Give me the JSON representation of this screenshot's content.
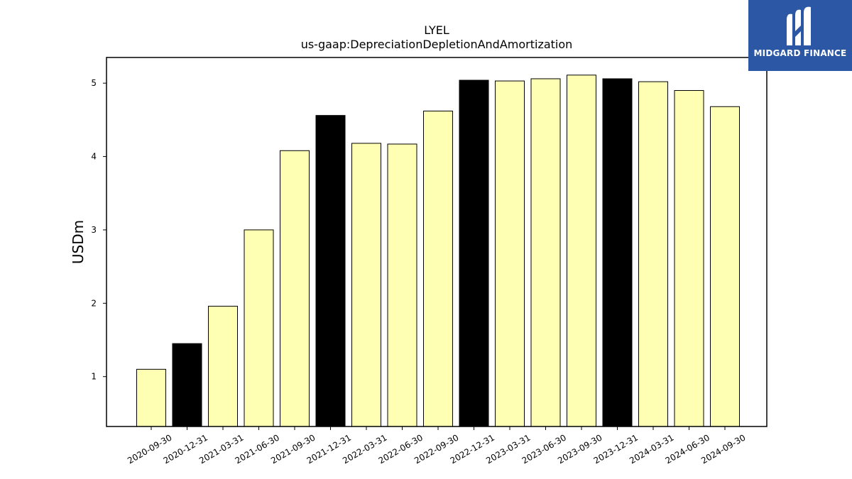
{
  "logo": {
    "brand": "MIDGARD FINANCE",
    "icon": "midgard-m-logo-icon",
    "bg_color": "#2b57a5"
  },
  "chart_data": {
    "type": "bar",
    "title": "LYEL",
    "subtitle": "us-gaap:DepreciationDepletionAndAmortization",
    "xlabel": "",
    "ylabel": "USDm",
    "ylim": [
      0.32,
      5.35
    ],
    "yticks": [
      1,
      2,
      3,
      4,
      5
    ],
    "grid": false,
    "categories": [
      "2020-09-30",
      "2020-12-31",
      "2021-03-31",
      "2021-06-30",
      "2021-09-30",
      "2021-12-31",
      "2022-03-31",
      "2022-06-30",
      "2022-09-30",
      "2022-12-31",
      "2023-03-31",
      "2023-06-30",
      "2023-09-30",
      "2023-12-31",
      "2024-03-31",
      "2024-06-30",
      "2024-09-30"
    ],
    "values": [
      1.1,
      1.45,
      1.96,
      3.0,
      4.08,
      4.56,
      4.18,
      4.17,
      4.62,
      5.04,
      5.03,
      5.06,
      5.11,
      5.06,
      5.02,
      4.9,
      4.68
    ],
    "colors": [
      "#ffffb3",
      "#000000",
      "#ffffb3",
      "#ffffb3",
      "#ffffb3",
      "#000000",
      "#ffffb3",
      "#ffffb3",
      "#ffffb3",
      "#000000",
      "#ffffb3",
      "#ffffb3",
      "#ffffb3",
      "#000000",
      "#ffffb3",
      "#ffffb3",
      "#ffffb3"
    ]
  }
}
